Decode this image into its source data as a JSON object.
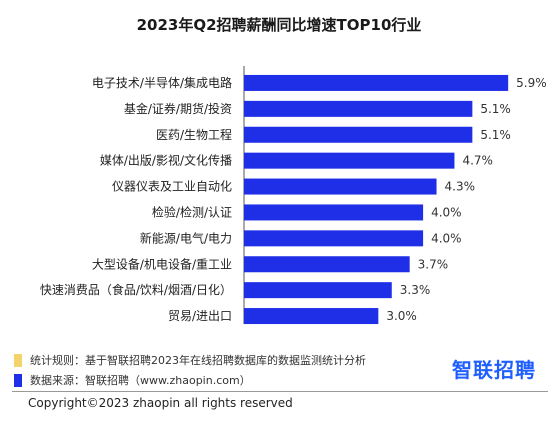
{
  "chart_data": {
    "type": "bar",
    "orientation": "horizontal",
    "title": "2023年Q2招聘薪酬同比增速TOP10行业",
    "categories": [
      "电子技术/半导体/集成电路",
      "基金/证券/期货/投资",
      "医药/生物工程",
      "媒体/出版/影视/文化传播",
      "仪器仪表及工业自动化",
      "检验/检测/认证",
      "新能源/电气/电力",
      "大型设备/机电设备/重工业",
      "快速消费品（食品/饮料/烟酒/日化）",
      "贸易/进出口"
    ],
    "values": [
      5.9,
      5.1,
      5.1,
      4.7,
      4.3,
      4.0,
      4.0,
      3.7,
      3.3,
      3.0
    ],
    "value_labels": [
      "5.9%",
      "5.1%",
      "5.1%",
      "4.7%",
      "4.3%",
      "4.0%",
      "4.0%",
      "3.7%",
      "3.3%",
      "3.0%"
    ],
    "unit": "%",
    "xlim": [
      0,
      6.7
    ],
    "bar_color": "#1f2fe8",
    "grid": false
  },
  "notes": [
    {
      "text": "统计规则：基于智联招聘2023年在线招聘数据库的数据监测统计分析",
      "color": "#f5d36b"
    },
    {
      "text": "数据来源：智联招聘（www.zhaopin.com）",
      "color": "#1f2fe8"
    }
  ],
  "brand": {
    "text": "智联招聘",
    "color": "#1f5fff"
  },
  "copyright": "Copyright©2023 zhaopin all rights reserved"
}
